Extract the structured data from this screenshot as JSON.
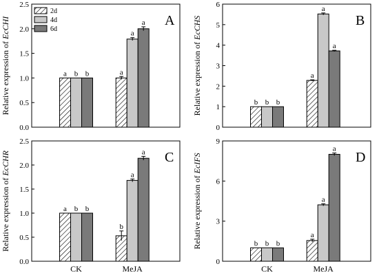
{
  "figure": {
    "categories": [
      "CK",
      "MeJA"
    ],
    "legend": [
      {
        "label": "2d",
        "fill": "hatch"
      },
      {
        "label": "4d",
        "fill": "#c8c8c8"
      },
      {
        "label": "6d",
        "fill": "#7a7a7a"
      }
    ],
    "colors": {
      "light_gray": "#c8c8c8",
      "dark_gray": "#7a7a7a",
      "stroke": "#000000"
    }
  },
  "chart_data": [
    {
      "type": "bar",
      "panel": "A",
      "ylabel_prefix": "Relative expression of ",
      "ylabel_gene": "EcCHI",
      "categories": [
        "CK",
        "MeJA"
      ],
      "series": [
        {
          "name": "2d",
          "values": [
            1.0,
            1.0
          ],
          "errors": [
            0.0,
            0.03
          ],
          "letters": [
            "a",
            "a"
          ]
        },
        {
          "name": "4d",
          "values": [
            1.0,
            1.79
          ],
          "errors": [
            0.0,
            0.03
          ],
          "letters": [
            "b",
            "a"
          ]
        },
        {
          "name": "6d",
          "values": [
            1.0,
            2.0
          ],
          "errors": [
            0.0,
            0.04
          ],
          "letters": [
            "b",
            "a"
          ]
        }
      ],
      "ylim": [
        0,
        2.5
      ],
      "yticks": [
        "0.0",
        "0.5",
        "1.0",
        "1.5",
        "2.0",
        "2.5"
      ],
      "show_legend": true,
      "show_xlabels": false
    },
    {
      "type": "bar",
      "panel": "B",
      "ylabel_prefix": "Relative expression of ",
      "ylabel_gene": "EcCHS",
      "categories": [
        "CK",
        "MeJA"
      ],
      "series": [
        {
          "name": "2d",
          "values": [
            1.0,
            2.28
          ],
          "errors": [
            0.0,
            0.03
          ],
          "letters": [
            "b",
            "a"
          ]
        },
        {
          "name": "4d",
          "values": [
            1.0,
            5.52
          ],
          "errors": [
            0.0,
            0.05
          ],
          "letters": [
            "b",
            "a"
          ]
        },
        {
          "name": "6d",
          "values": [
            1.0,
            3.72
          ],
          "errors": [
            0.0,
            0.03
          ],
          "letters": [
            "b",
            "a"
          ]
        }
      ],
      "ylim": [
        0,
        6
      ],
      "yticks": [
        "0",
        "1",
        "2",
        "3",
        "4",
        "5",
        "6"
      ],
      "show_legend": false,
      "show_xlabels": false
    },
    {
      "type": "bar",
      "panel": "C",
      "ylabel_prefix": "Relative expression of ",
      "ylabel_gene": "EcCHR",
      "categories": [
        "CK",
        "MeJA"
      ],
      "series": [
        {
          "name": "2d",
          "values": [
            1.0,
            0.53
          ],
          "errors": [
            0.0,
            0.1
          ],
          "letters": [
            "a",
            "b"
          ]
        },
        {
          "name": "4d",
          "values": [
            1.0,
            1.68
          ],
          "errors": [
            0.0,
            0.03
          ],
          "letters": [
            "b",
            "a"
          ]
        },
        {
          "name": "6d",
          "values": [
            1.0,
            2.14
          ],
          "errors": [
            0.0,
            0.04
          ],
          "letters": [
            "b",
            "a"
          ]
        }
      ],
      "ylim": [
        0,
        2.5
      ],
      "yticks": [
        "0.0",
        "0.5",
        "1.0",
        "1.5",
        "2.0",
        "2.5"
      ],
      "show_legend": false,
      "show_xlabels": true
    },
    {
      "type": "bar",
      "panel": "D",
      "ylabel_prefix": "Relative expression of ",
      "ylabel_gene": "EcIFS",
      "categories": [
        "CK",
        "MeJA"
      ],
      "series": [
        {
          "name": "2d",
          "values": [
            1.0,
            1.55
          ],
          "errors": [
            0.0,
            0.1
          ],
          "letters": [
            "b",
            "a"
          ]
        },
        {
          "name": "4d",
          "values": [
            1.0,
            4.22
          ],
          "errors": [
            0.0,
            0.08
          ],
          "letters": [
            "b",
            "a"
          ]
        },
        {
          "name": "6d",
          "values": [
            1.0,
            8.0
          ],
          "errors": [
            0.0,
            0.1
          ],
          "letters": [
            "b",
            "a"
          ]
        }
      ],
      "ylim": [
        0,
        9
      ],
      "yticks": [
        "0",
        "3",
        "6",
        "9"
      ],
      "show_legend": false,
      "show_xlabels": true
    }
  ]
}
